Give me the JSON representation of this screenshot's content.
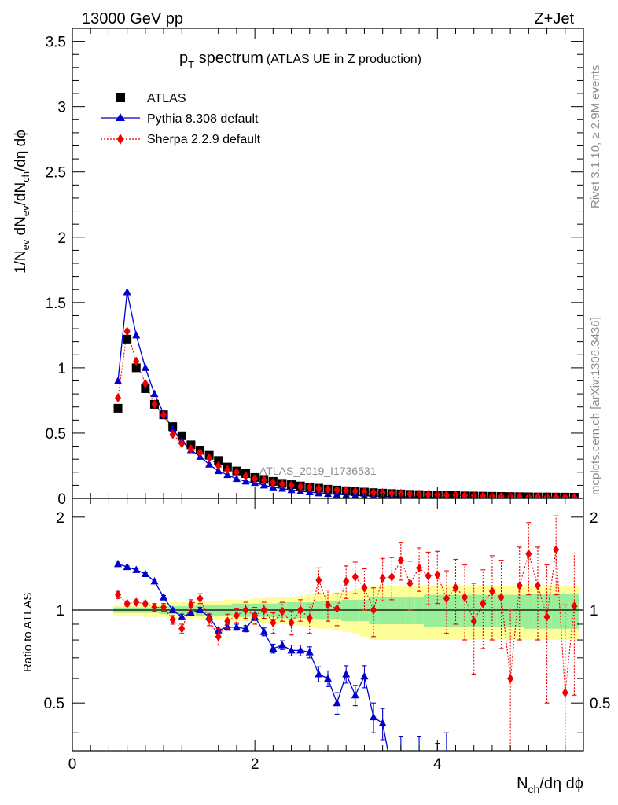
{
  "header": {
    "left": "13000 GeV pp",
    "right": "Z+Jet"
  },
  "side": {
    "rivet": "Rivet 3.1.10, ≥ 2.9M events",
    "mcplots": "mcplots.cern.ch [arXiv:1306.3436]"
  },
  "colors": {
    "atlas": "#000000",
    "pythia": "#0000cc",
    "sherpa": "#ee0000",
    "band_inner": "#99ee99",
    "band_outer": "#ffff99"
  },
  "chart_data": {
    "type": "scatter",
    "title_main": "p",
    "title_sub": "T",
    "title_rest": " spectrum",
    "title_note": "(ATLAS UE in Z production)",
    "analysis_label": "ATLAS_2019_I1736531",
    "xlabel": "N",
    "xlabel_sub": "ch",
    "xlabel_rest": "/dη dϕ",
    "ylabel_top": "1/N",
    "ylabel_top_sub1": "ev",
    "ylabel_top_mid": " dN",
    "ylabel_top_sub2": "ev",
    "ylabel_top_mid2": "/dN",
    "ylabel_top_sub3": "ch",
    "ylabel_top_rest": "/dη dϕ",
    "ylabel_bottom": "Ratio to ATLAS",
    "xlim": [
      0,
      5.6
    ],
    "ylim_top": [
      0,
      3.6
    ],
    "ylim_ratio": [
      0.35,
      2.3
    ],
    "x_ticks": [
      "0",
      "2",
      "4"
    ],
    "y_ticks_top": [
      "0",
      "0.5",
      "1",
      "1.5",
      "2",
      "2.5",
      "3",
      "3.5"
    ],
    "y_ticks_ratio": [
      "0.5",
      "1",
      "2"
    ],
    "legend": [
      {
        "name": "ATLAS"
      },
      {
        "name": "Pythia 8.308 default"
      },
      {
        "name": "Sherpa 2.2.9 default"
      }
    ],
    "x": [
      0.5,
      0.6,
      0.7,
      0.8,
      0.9,
      1.0,
      1.1,
      1.2,
      1.3,
      1.4,
      1.5,
      1.6,
      1.7,
      1.8,
      1.9,
      2.0,
      2.1,
      2.2,
      2.3,
      2.4,
      2.5,
      2.6,
      2.7,
      2.8,
      2.9,
      3.0,
      3.1,
      3.2,
      3.3,
      3.4,
      3.5,
      3.6,
      3.7,
      3.8,
      3.9,
      4.0,
      4.1,
      4.2,
      4.3,
      4.4,
      4.5,
      4.6,
      4.7,
      4.8,
      4.9,
      5.0,
      5.1,
      5.2,
      5.3,
      5.4,
      5.5
    ],
    "series": [
      {
        "name": "ATLAS",
        "values": [
          0.69,
          1.22,
          1.0,
          0.84,
          0.72,
          0.64,
          0.55,
          0.48,
          0.41,
          0.37,
          0.33,
          0.29,
          0.24,
          0.21,
          0.19,
          0.16,
          0.145,
          0.13,
          0.115,
          0.105,
          0.095,
          0.085,
          0.078,
          0.07,
          0.064,
          0.058,
          0.052,
          0.048,
          0.044,
          0.04,
          0.037,
          0.034,
          0.031,
          0.029,
          0.027,
          0.025,
          0.023,
          0.021,
          0.019,
          0.018,
          0.017,
          0.016,
          0.015,
          0.014,
          0.013,
          0.012,
          0.011,
          0.011,
          0.01,
          0.01,
          0.009
        ]
      },
      {
        "name": "Pythia 8.308 default",
        "values": [
          0.9,
          1.58,
          1.25,
          1.0,
          0.8,
          0.65,
          0.53,
          0.44,
          0.37,
          0.32,
          0.26,
          0.21,
          0.18,
          0.15,
          0.13,
          0.12,
          0.1,
          0.085,
          0.075,
          0.065,
          0.055,
          0.048,
          0.04,
          0.035,
          0.03,
          0.027,
          0.023,
          0.02,
          0.018,
          0.016,
          0.014,
          0.012,
          0.011,
          0.009,
          0.008,
          0.007,
          0.006,
          0.005,
          0.005,
          0.004,
          0.004,
          0.003,
          0.003,
          0.003,
          0.002,
          0.002,
          0.002,
          0.002,
          0.002,
          0.001,
          0.001
        ],
        "ratio": [
          1.41,
          1.38,
          1.35,
          1.31,
          1.24,
          1.1,
          1.0,
          0.95,
          0.98,
          1.0,
          0.95,
          0.86,
          0.88,
          0.88,
          0.87,
          0.95,
          0.85,
          0.75,
          0.77,
          0.74,
          0.74,
          0.73,
          0.62,
          0.6,
          0.5,
          0.62,
          0.53,
          0.61,
          0.45,
          0.43,
          0.3,
          0.34,
          0.28,
          0.33,
          0.25,
          0.31,
          0.34,
          0.2,
          0.2,
          0.2,
          0.2,
          0.2,
          0.2,
          0.2,
          0.2,
          0.2,
          0.2,
          0.2,
          0.2,
          0.2,
          0.2
        ],
        "ratio_err": [
          0.01,
          0.01,
          0.01,
          0.01,
          0.01,
          0.015,
          0.015,
          0.02,
          0.02,
          0.02,
          0.02,
          0.02,
          0.02,
          0.02,
          0.02,
          0.025,
          0.025,
          0.025,
          0.025,
          0.03,
          0.03,
          0.03,
          0.035,
          0.035,
          0.04,
          0.04,
          0.04,
          0.05,
          0.05,
          0.05,
          0.05,
          0.05,
          0.05,
          0.06,
          0.06,
          0.06,
          0.06,
          0.06,
          0.06,
          0.06,
          0.06,
          0.06,
          0.06,
          0.06,
          0.06,
          0.06,
          0.06,
          0.06,
          0.06,
          0.06,
          0.06
        ]
      },
      {
        "name": "Sherpa 2.2.9 default",
        "values": [
          0.77,
          1.28,
          1.05,
          0.88,
          0.72,
          0.64,
          0.49,
          0.42,
          0.38,
          0.35,
          0.31,
          0.25,
          0.22,
          0.2,
          0.17,
          0.15,
          0.14,
          0.12,
          0.11,
          0.1,
          0.09,
          0.085,
          0.075,
          0.07,
          0.065,
          0.06,
          0.055,
          0.05,
          0.045,
          0.042,
          0.04,
          0.038,
          0.034,
          0.032,
          0.03,
          0.028,
          0.026,
          0.024,
          0.022,
          0.02,
          0.018,
          0.016,
          0.015,
          0.014,
          0.013,
          0.012,
          0.012,
          0.011,
          0.011,
          0.01,
          0.009
        ],
        "ratio": [
          1.12,
          1.05,
          1.06,
          1.05,
          1.02,
          1.02,
          0.93,
          0.87,
          1.04,
          1.09,
          0.93,
          0.82,
          0.92,
          0.96,
          1.0,
          0.96,
          1.0,
          0.91,
          0.99,
          0.91,
          1.0,
          0.94,
          1.25,
          1.04,
          1.01,
          1.24,
          1.28,
          1.18,
          1.0,
          1.27,
          1.28,
          1.45,
          1.22,
          1.37,
          1.29,
          1.3,
          1.09,
          1.18,
          1.1,
          0.92,
          1.05,
          1.15,
          1.1,
          0.6,
          1.2,
          1.52,
          1.2,
          0.95,
          1.57,
          0.54,
          1.03
        ],
        "ratio_err": [
          0.03,
          0.02,
          0.02,
          0.02,
          0.03,
          0.03,
          0.03,
          0.03,
          0.04,
          0.04,
          0.04,
          0.05,
          0.05,
          0.05,
          0.06,
          0.06,
          0.06,
          0.07,
          0.07,
          0.08,
          0.08,
          0.1,
          0.12,
          0.12,
          0.12,
          0.15,
          0.15,
          0.18,
          0.18,
          0.2,
          0.2,
          0.2,
          0.22,
          0.22,
          0.25,
          0.25,
          0.25,
          0.28,
          0.3,
          0.3,
          0.3,
          0.35,
          0.35,
          0.4,
          0.4,
          0.4,
          0.4,
          0.45,
          0.45,
          0.5,
          0.5
        ]
      }
    ],
    "band_inner_halfwidth": [
      0.02,
      0.02,
      0.02,
      0.02,
      0.02,
      0.03,
      0.03,
      0.03,
      0.03,
      0.04,
      0.04,
      0.04,
      0.04,
      0.05,
      0.05,
      0.05,
      0.05,
      0.05,
      0.06,
      0.06,
      0.06,
      0.06,
      0.07,
      0.07,
      0.07,
      0.08,
      0.08,
      0.08,
      0.1,
      0.1,
      0.1,
      0.1,
      0.1,
      0.1,
      0.12,
      0.12,
      0.12,
      0.12,
      0.12,
      0.12,
      0.12,
      0.12,
      0.12,
      0.12,
      0.12,
      0.13,
      0.13,
      0.13,
      0.13,
      0.13,
      0.13
    ],
    "band_outer_halfwidth": [
      0.04,
      0.04,
      0.04,
      0.05,
      0.05,
      0.05,
      0.06,
      0.06,
      0.06,
      0.07,
      0.07,
      0.07,
      0.08,
      0.08,
      0.08,
      0.09,
      0.09,
      0.1,
      0.1,
      0.1,
      0.11,
      0.12,
      0.13,
      0.13,
      0.14,
      0.15,
      0.16,
      0.18,
      0.2,
      0.2,
      0.2,
      0.2,
      0.2,
      0.2,
      0.2,
      0.2,
      0.2,
      0.2,
      0.2,
      0.2,
      0.2,
      0.2,
      0.2,
      0.2,
      0.2,
      0.2,
      0.2,
      0.2,
      0.2,
      0.2,
      0.2
    ]
  }
}
